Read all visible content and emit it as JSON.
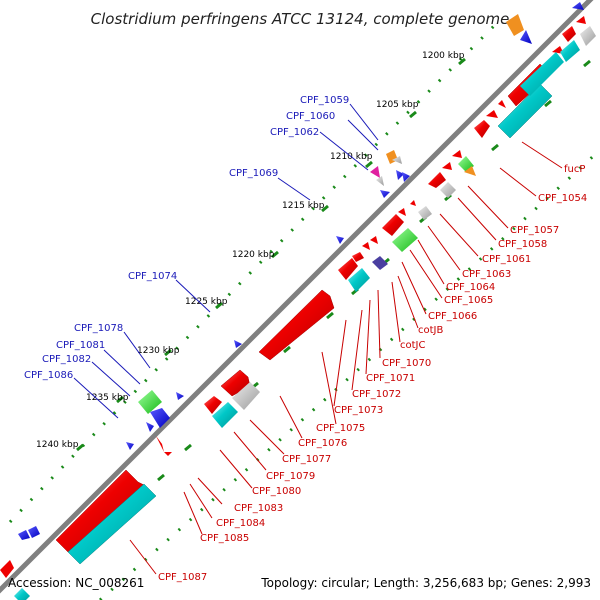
{
  "title": "Clostridium perfringens ATCC 13124, complete genome",
  "footer": {
    "accession": "Accession: NC_008261",
    "summary": "Topology: circular; Length: 3,256,683 bp; Genes: 2,993"
  },
  "colors": {
    "backbone": "#808080",
    "forward_cds": "#ee0000",
    "reverse_cds": "#1111ee",
    "cyan_track": "#00c8c8",
    "tick": "#1a8a1a",
    "left_label": "#1a1ab8",
    "right_label": "#c80000"
  },
  "kbp_marks": [
    {
      "label": "1200 kbp"
    },
    {
      "label": "1205 kbp"
    },
    {
      "label": "1210 kbp"
    },
    {
      "label": "1215 kbp"
    },
    {
      "label": "1220 kbp"
    },
    {
      "label": "1225 kbp"
    },
    {
      "label": "1230 kbp"
    },
    {
      "label": "1235 kbp"
    },
    {
      "label": "1240 kbp"
    }
  ],
  "left_labels": [
    {
      "text": "CPF_1059"
    },
    {
      "text": "CPF_1060"
    },
    {
      "text": "CPF_1062"
    },
    {
      "text": "CPF_1069"
    },
    {
      "text": "CPF_1074"
    },
    {
      "text": "CPF_1078"
    },
    {
      "text": "CPF_1081"
    },
    {
      "text": "CPF_1082"
    },
    {
      "text": "CPF_1086"
    }
  ],
  "right_labels": [
    {
      "text": "fucP"
    },
    {
      "text": "CPF_1054"
    },
    {
      "text": "CPF_1057"
    },
    {
      "text": "CPF_1058"
    },
    {
      "text": "CPF_1061"
    },
    {
      "text": "CPF_1063"
    },
    {
      "text": "CPF_1064"
    },
    {
      "text": "CPF_1065"
    },
    {
      "text": "CPF_1066"
    },
    {
      "text": "cotJB"
    },
    {
      "text": "cotJC"
    },
    {
      "text": "CPF_1070"
    },
    {
      "text": "CPF_1071"
    },
    {
      "text": "CPF_1072"
    },
    {
      "text": "CPF_1073"
    },
    {
      "text": "CPF_1075"
    },
    {
      "text": "CPF_1076"
    },
    {
      "text": "CPF_1077"
    },
    {
      "text": "CPF_1079"
    },
    {
      "text": "CPF_1080"
    },
    {
      "text": "CPF_1083"
    },
    {
      "text": "CPF_1084"
    },
    {
      "text": "CPF_1085"
    },
    {
      "text": "CPF_1087"
    }
  ]
}
